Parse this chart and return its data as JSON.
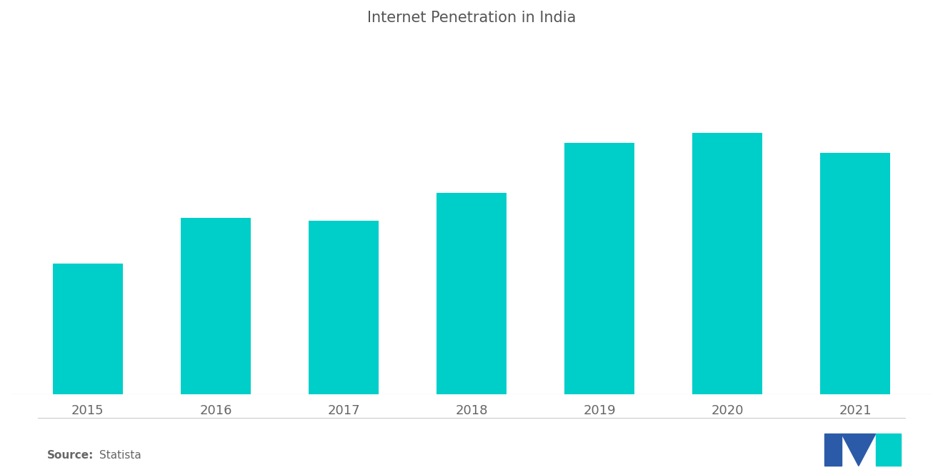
{
  "title": "Internet Penetration in India",
  "categories": [
    "2015",
    "2016",
    "2017",
    "2018",
    "2019",
    "2020",
    "2021"
  ],
  "values": [
    26,
    35,
    34.5,
    40,
    50,
    52,
    48
  ],
  "bar_color": "#00CEC9",
  "background_color": "#ffffff",
  "title_fontsize": 15,
  "tick_fontsize": 13,
  "ylim": [
    0,
    70
  ],
  "source_bold": "Source:",
  "source_text": "  Statista",
  "source_fontsize": 11,
  "bar_width": 0.55,
  "blue_color": "#2B5BA8",
  "teal_color": "#00CEC9"
}
